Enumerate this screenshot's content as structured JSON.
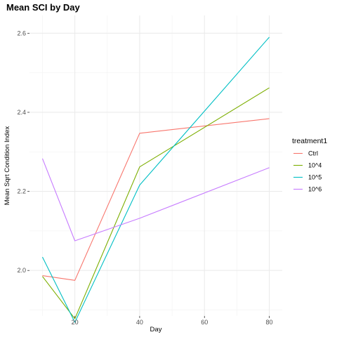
{
  "chart_data": {
    "type": "line",
    "title": "Mean SCI by Day",
    "xlabel": "Day",
    "ylabel": "Mean Sqrt Condition Index",
    "xlim": [
      6,
      84
    ],
    "ylim": [
      1.885,
      2.645
    ],
    "x_ticks": [
      20,
      40,
      60,
      80
    ],
    "y_ticks": [
      2.0,
      2.2,
      2.4,
      2.6
    ],
    "x_tick_labels": [
      "20",
      "40",
      "60",
      "80"
    ],
    "y_tick_labels": [
      "2.0",
      "2.2",
      "2.4",
      "2.6"
    ],
    "grid": true,
    "legend_position": "right",
    "legend_title": "treatment1",
    "x": [
      10,
      20,
      40,
      80
    ],
    "series": [
      {
        "name": "Ctrl",
        "color": "#F8766D",
        "values": [
          1.987,
          1.975,
          2.347,
          2.384
        ]
      },
      {
        "name": "10^4",
        "color": "#7CAE00",
        "values": [
          1.985,
          1.878,
          2.262,
          2.462
        ]
      },
      {
        "name": "10^5",
        "color": "#00BFC4",
        "values": [
          2.034,
          1.869,
          2.216,
          2.59
        ]
      },
      {
        "name": "10^6",
        "color": "#C77CFF",
        "values": [
          2.283,
          2.075,
          2.132,
          2.26
        ]
      }
    ]
  }
}
